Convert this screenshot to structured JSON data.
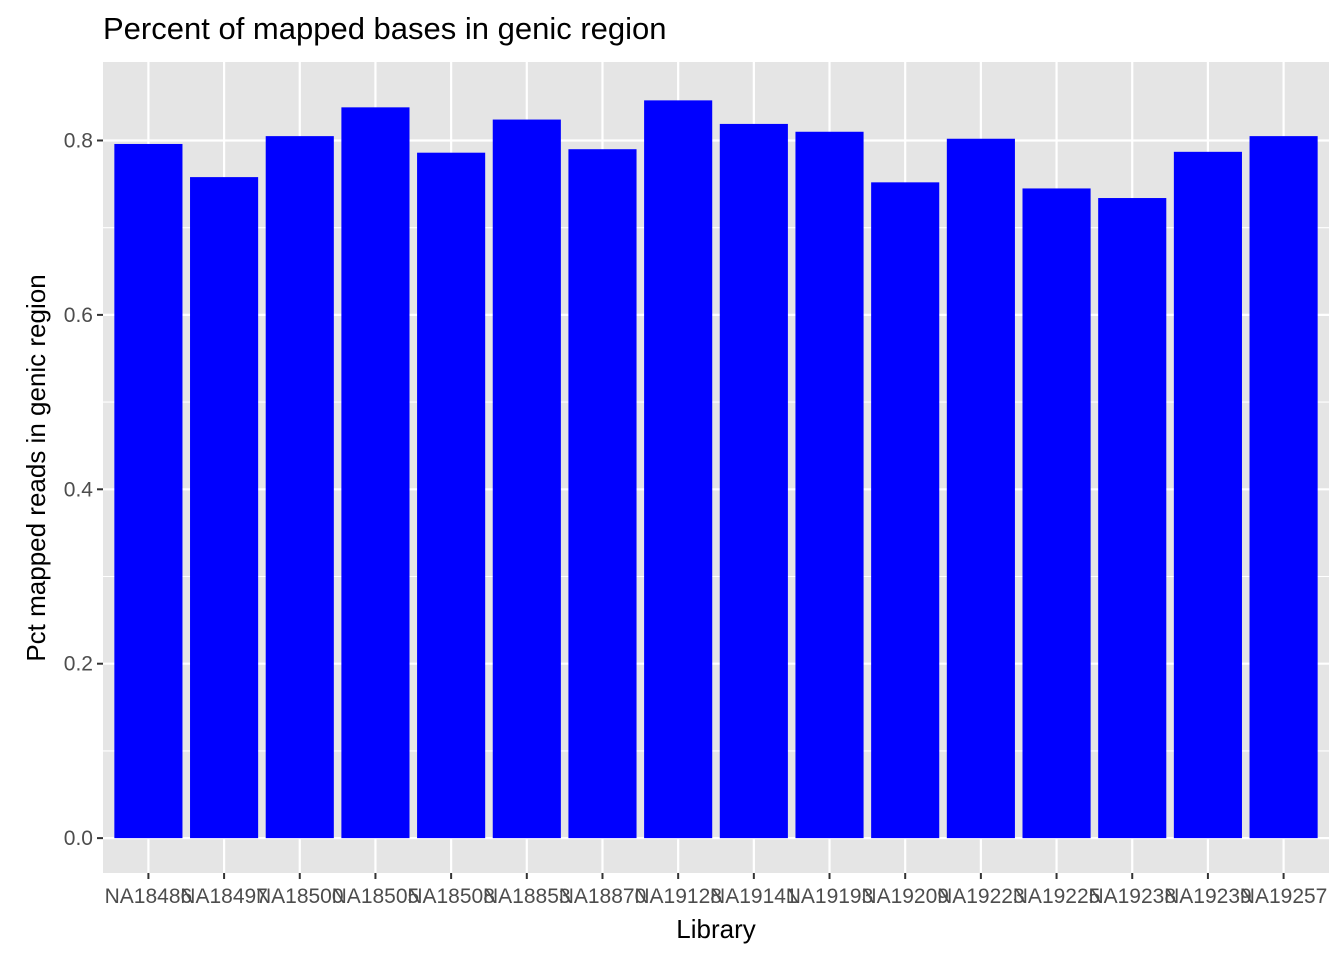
{
  "chart_data": {
    "type": "bar",
    "title": "Percent of mapped bases in genic region",
    "xlabel": "Library",
    "ylabel": "Pct mapped reads in genic region",
    "categories": [
      "NA18486",
      "NA18497",
      "NA18500",
      "NA18505",
      "NA18508",
      "NA18853",
      "NA18870",
      "NA19128",
      "NA19141",
      "NA19193",
      "NA19209",
      "NA19223",
      "NA19225",
      "NA19238",
      "NA19239",
      "NA19257"
    ],
    "values": [
      0.796,
      0.758,
      0.805,
      0.838,
      0.786,
      0.824,
      0.79,
      0.846,
      0.819,
      0.81,
      0.752,
      0.802,
      0.745,
      0.734,
      0.787,
      0.805
    ],
    "y_ticks": [
      "0.0",
      "0.2",
      "0.4",
      "0.6",
      "0.8"
    ],
    "ylim": [
      -0.04,
      0.89
    ],
    "grid": true,
    "colors": {
      "bar": "#0000ff",
      "panel_background": "#e5e5e5",
      "gridline": "#ffffff"
    }
  }
}
